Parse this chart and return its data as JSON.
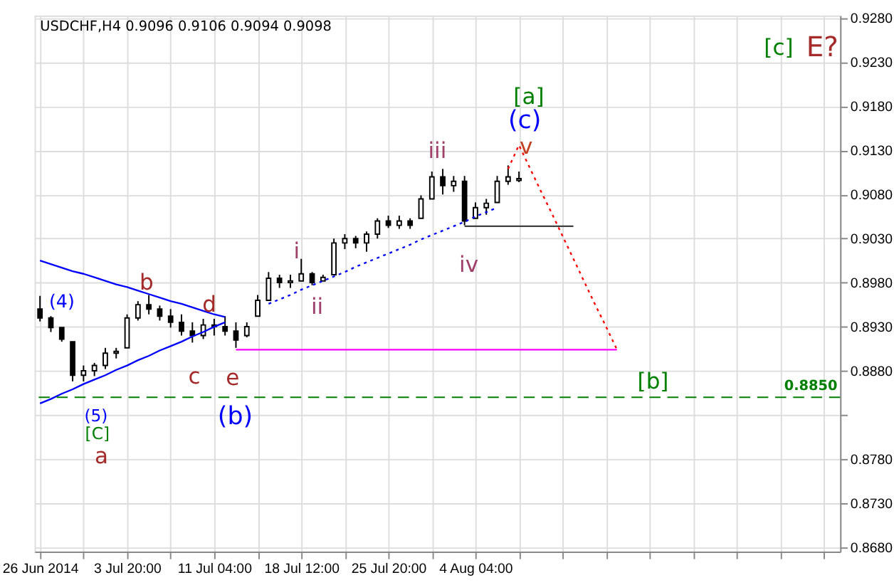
{
  "chart_data": {
    "type": "candlestick",
    "title": "USDCHF,H4 0.9096 0.9106 0.9094 0.9098",
    "color": "#000000",
    "categories": [
      "26 Jun 2014",
      null,
      null,
      null,
      null,
      null,
      null,
      null,
      "3 Jul 20:00",
      null,
      null,
      null,
      null,
      null,
      null,
      null,
      "11 Jul 04:00",
      null,
      null,
      null,
      null,
      null,
      null,
      null,
      "18 Jul 12:00",
      null,
      null,
      null,
      null,
      null,
      null,
      null,
      "25 Jul 20:00",
      null,
      null,
      null,
      null,
      null,
      null,
      null,
      "4 Aug 04:00",
      null,
      null,
      null,
      null,
      null,
      null,
      null,
      null,
      null,
      null,
      null,
      null,
      null,
      null,
      null,
      null,
      null,
      null,
      null,
      null,
      null,
      null,
      null,
      null,
      null,
      null,
      null,
      null,
      null,
      null,
      null,
      null,
      null
    ],
    "ohlc": [
      [
        0.895,
        0.8965,
        0.8936,
        0.894
      ],
      [
        0.894,
        0.8942,
        0.8924,
        0.8929
      ],
      [
        0.8929,
        0.8929,
        0.8913,
        0.8916
      ],
      [
        0.8913,
        0.8913,
        0.8868,
        0.8875
      ],
      [
        0.8875,
        0.8886,
        0.8868,
        0.888
      ],
      [
        0.888,
        0.8889,
        0.8874,
        0.8886
      ],
      [
        0.8886,
        0.8906,
        0.8882,
        0.89
      ],
      [
        0.89,
        0.8906,
        0.8894,
        0.8902
      ],
      [
        0.8906,
        0.8944,
        0.8906,
        0.894
      ],
      [
        0.894,
        0.8959,
        0.8937,
        0.8955
      ],
      [
        0.8955,
        0.8966,
        0.8944,
        0.895
      ],
      [
        0.895,
        0.8954,
        0.8937,
        0.8942
      ],
      [
        0.8942,
        0.895,
        0.8929,
        0.8935
      ],
      [
        0.8935,
        0.8944,
        0.892,
        0.8925
      ],
      [
        0.8925,
        0.8935,
        0.8912,
        0.892
      ],
      [
        0.892,
        0.8939,
        0.8916,
        0.8932
      ],
      [
        0.8932,
        0.8939,
        0.892,
        0.893
      ],
      [
        0.893,
        0.8942,
        0.892,
        0.8925
      ],
      [
        0.8925,
        0.8935,
        0.8906,
        0.8915
      ],
      [
        0.892,
        0.8935,
        0.8918,
        0.893
      ],
      [
        0.8942,
        0.8966,
        0.8942,
        0.896
      ],
      [
        0.896,
        0.8992,
        0.896,
        0.8985
      ],
      [
        0.8985,
        0.8989,
        0.8974,
        0.898
      ],
      [
        0.898,
        0.8989,
        0.8974,
        0.8982
      ],
      [
        0.8982,
        0.9007,
        0.8982,
        0.899
      ],
      [
        0.899,
        0.8992,
        0.8977,
        0.898
      ],
      [
        0.8982,
        0.8989,
        0.8982,
        0.8986
      ],
      [
        0.8989,
        0.903,
        0.8989,
        0.9025
      ],
      [
        0.9025,
        0.9035,
        0.9018,
        0.903
      ],
      [
        0.903,
        0.9033,
        0.9019,
        0.9025
      ],
      [
        0.9025,
        0.9038,
        0.9015,
        0.9035
      ],
      [
        0.9035,
        0.9053,
        0.903,
        0.905
      ],
      [
        0.905,
        0.9056,
        0.9042,
        0.9045
      ],
      [
        0.9045,
        0.9056,
        0.9041,
        0.905
      ],
      [
        0.905,
        0.9053,
        0.9041,
        0.9045
      ],
      [
        0.9053,
        0.9079,
        0.9053,
        0.9075
      ],
      [
        0.9075,
        0.9106,
        0.9075,
        0.91
      ],
      [
        0.91,
        0.9109,
        0.908,
        0.909
      ],
      [
        0.909,
        0.9101,
        0.9083,
        0.9095
      ],
      [
        0.9095,
        0.9101,
        0.9045,
        0.905
      ],
      [
        0.9053,
        0.9071,
        0.9053,
        0.9065
      ],
      [
        0.9065,
        0.9075,
        0.9057,
        0.907
      ],
      [
        0.9071,
        0.9101,
        0.9071,
        0.9095
      ],
      [
        0.9095,
        0.9113,
        0.9091,
        0.91
      ],
      [
        0.9096,
        0.9106,
        0.9094,
        0.9098
      ],
      null,
      null,
      null,
      null,
      null,
      null,
      null,
      null,
      null,
      null,
      null,
      null,
      null,
      null,
      null,
      null,
      null,
      null,
      null,
      null,
      null,
      null,
      null,
      null,
      null,
      null,
      null,
      null,
      null
    ],
    "series": [
      {
        "type": "line",
        "color": "#0000ff",
        "line_style": "solid",
        "values": [
          0.9005,
          0.9001,
          0.8997,
          0.8993,
          0.899,
          0.8986,
          0.8982,
          0.8978,
          0.8975,
          0.8971,
          0.8967,
          0.8963,
          0.8959,
          0.8956,
          0.8952,
          0.8948,
          0.8944,
          0.8941,
          null,
          null,
          null,
          null,
          null,
          null,
          null,
          null,
          null,
          null,
          null,
          null,
          null,
          null,
          null,
          null,
          null,
          null,
          null,
          null,
          null,
          null,
          null,
          null,
          null,
          null,
          null,
          null,
          null,
          null,
          null,
          null,
          null,
          null,
          null,
          null,
          null,
          null,
          null,
          null,
          null,
          null,
          null,
          null,
          null,
          null,
          null,
          null,
          null,
          null,
          null,
          null,
          null,
          null,
          null,
          null
        ]
      },
      {
        "type": "line",
        "color": "#0000ff",
        "line_style": "solid",
        "values": [
          0.8843,
          0.8848,
          0.8854,
          0.8859,
          0.8865,
          0.887,
          0.8875,
          0.8881,
          0.8886,
          0.8892,
          0.8897,
          0.8903,
          0.8908,
          0.8913,
          0.8919,
          0.8924,
          0.893,
          0.8935,
          null,
          null,
          null,
          null,
          null,
          null,
          null,
          null,
          null,
          null,
          null,
          null,
          null,
          null,
          null,
          null,
          null,
          null,
          null,
          null,
          null,
          null,
          null,
          null,
          null,
          null,
          null,
          null,
          null,
          null,
          null,
          null,
          null,
          null,
          null,
          null,
          null,
          null,
          null,
          null,
          null,
          null,
          null,
          null,
          null,
          null,
          null,
          null,
          null,
          null,
          null,
          null,
          null,
          null,
          null,
          null
        ]
      },
      {
        "type": "line",
        "color": "#0000ff",
        "line_style": "dotted",
        "values": [
          null,
          null,
          null,
          null,
          null,
          null,
          null,
          null,
          null,
          null,
          null,
          null,
          null,
          null,
          null,
          null,
          null,
          null,
          null,
          null,
          null,
          0.8956,
          0.8961,
          0.8966,
          0.8972,
          0.8977,
          0.8982,
          0.8987,
          0.8992,
          0.8998,
          0.9003,
          0.9008,
          0.9013,
          0.9018,
          0.9023,
          0.9029,
          0.9034,
          0.9039,
          0.9044,
          0.9049,
          0.9055,
          0.906,
          0.9065,
          null,
          null,
          null,
          null,
          null,
          null,
          null,
          null,
          null,
          null,
          null,
          null,
          null,
          null,
          null,
          null,
          null,
          null,
          null,
          null,
          null,
          null,
          null,
          null,
          null,
          null,
          null,
          null,
          null,
          null,
          null
        ]
      },
      {
        "type": "line",
        "color": "#ff0000",
        "line_style": "dotted",
        "values": [
          null,
          null,
          null,
          null,
          null,
          null,
          null,
          null,
          null,
          null,
          null,
          null,
          null,
          null,
          null,
          null,
          null,
          null,
          null,
          null,
          null,
          null,
          null,
          null,
          null,
          null,
          null,
          null,
          null,
          null,
          null,
          null,
          null,
          null,
          null,
          null,
          null,
          null,
          null,
          null,
          null,
          null,
          null,
          0.9109,
          0.9136,
          0.911,
          0.9084,
          0.9059,
          0.9033,
          0.9007,
          0.8981,
          0.8955,
          0.893,
          0.8904,
          null,
          null,
          null,
          null,
          null,
          null,
          null,
          null,
          null,
          null,
          null,
          null,
          null,
          null,
          null,
          null,
          null,
          null,
          null,
          null
        ]
      },
      {
        "type": "line",
        "color": "#ff00ff",
        "line_style": "solid",
        "values": [
          null,
          null,
          null,
          null,
          null,
          null,
          null,
          null,
          null,
          null,
          null,
          null,
          null,
          null,
          null,
          null,
          null,
          null,
          0.8904,
          0.8904,
          0.8904,
          0.8904,
          0.8904,
          0.8904,
          0.8904,
          0.8904,
          0.8904,
          0.8904,
          0.8904,
          0.8904,
          0.8904,
          0.8904,
          0.8904,
          0.8904,
          0.8904,
          0.8904,
          0.8904,
          0.8904,
          0.8904,
          0.8904,
          0.8904,
          0.8904,
          0.8904,
          0.8904,
          0.8904,
          0.8904,
          0.8904,
          0.8904,
          0.8904,
          0.8904,
          0.8904,
          0.8904,
          0.8904,
          0.8904,
          null,
          null,
          null,
          null,
          null,
          null,
          null,
          null,
          null,
          null,
          null,
          null,
          null,
          null,
          null,
          null,
          null,
          null,
          null,
          null
        ]
      },
      {
        "type": "line",
        "color": "#404040",
        "line_style": "solid",
        "values": [
          null,
          null,
          null,
          null,
          null,
          null,
          null,
          null,
          null,
          null,
          null,
          null,
          null,
          null,
          null,
          null,
          null,
          null,
          null,
          null,
          null,
          null,
          null,
          null,
          null,
          null,
          null,
          null,
          null,
          null,
          null,
          null,
          null,
          null,
          null,
          null,
          null,
          null,
          null,
          0.9044,
          0.9044,
          0.9044,
          0.9044,
          0.9044,
          0.9044,
          0.9044,
          0.9044,
          0.9044,
          0.9044,
          0.9044,
          null,
          null,
          null,
          null,
          null,
          null,
          null,
          null,
          null,
          null,
          null,
          null,
          null,
          null,
          null,
          null,
          null,
          null,
          null,
          null,
          null,
          null,
          null,
          null
        ]
      }
    ],
    "ref_lines": [
      {
        "axis": "y",
        "value": 0.885,
        "label": "0.8850",
        "color": "#008000",
        "line_style": "dashed"
      }
    ],
    "annotations": [
      "(4)",
      "b",
      "d",
      "c",
      "e",
      "(5)",
      "[C]",
      "a",
      "(b)",
      "i",
      "ii",
      "iii",
      "iv",
      "v",
      "(c)",
      "[a]",
      "[b]",
      "[c]",
      "E?"
    ],
    "ylim": [
      0.8675,
      0.9283
    ],
    "yticks": [
      {
        "value": 0.868,
        "label": "0.8680"
      },
      {
        "value": 0.873,
        "label": "0.8730"
      },
      {
        "value": 0.878,
        "label": "0.8780"
      },
      {
        "value": 0.883,
        "label": null
      },
      {
        "value": 0.888,
        "label": "0.8880"
      },
      {
        "value": 0.893,
        "label": "0.8930"
      },
      {
        "value": 0.898,
        "label": "0.8980"
      },
      {
        "value": 0.903,
        "label": "0.9030"
      },
      {
        "value": 0.908,
        "label": "0.9080"
      },
      {
        "value": 0.913,
        "label": "0.9130"
      },
      {
        "value": 0.918,
        "label": "0.9180"
      },
      {
        "value": 0.923,
        "label": "0.9230"
      },
      {
        "value": 0.928,
        "label": "0.9280"
      }
    ],
    "grid": true
  }
}
